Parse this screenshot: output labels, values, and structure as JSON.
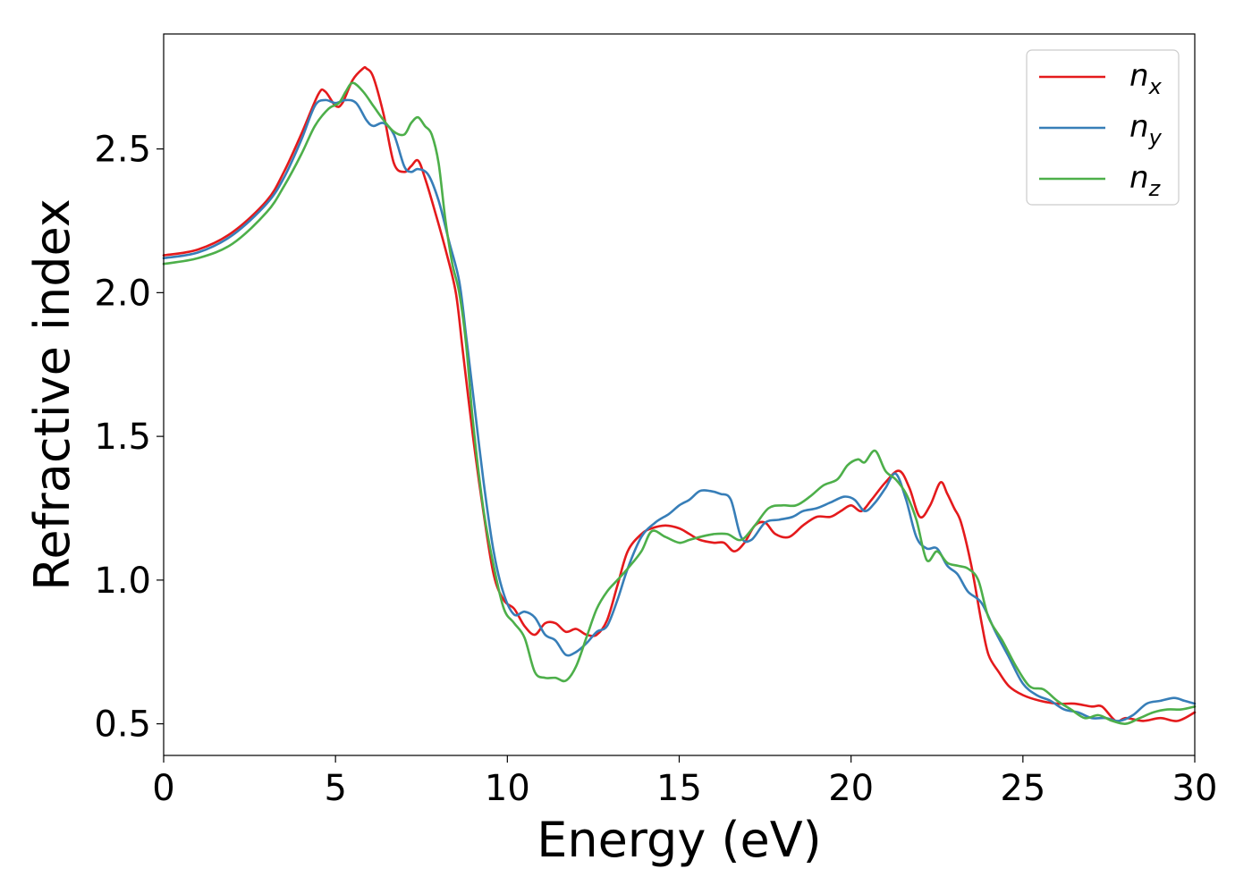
{
  "chart_data": {
    "type": "line",
    "xlabel": "Energy (eV)",
    "ylabel": "Refractive index",
    "xlim": [
      0,
      30
    ],
    "ylim": [
      0.39,
      2.9
    ],
    "x_ticks": [
      "0",
      "5",
      "10",
      "15",
      "20",
      "25",
      "30"
    ],
    "y_ticks": [
      "0.5",
      "1.0",
      "1.5",
      "2.0",
      "2.5"
    ],
    "grid": false,
    "legend_position": "top-right",
    "series": [
      {
        "name": "n",
        "subscript": "x",
        "color": "#e41a1c",
        "x": [
          0,
          1,
          2,
          3,
          3.5,
          4,
          4.5,
          4.7,
          5.0,
          5.2,
          5.5,
          5.8,
          5.9,
          6.1,
          6.4,
          6.7,
          7.0,
          7.2,
          7.4,
          7.6,
          7.9,
          8.2,
          8.5,
          8.7,
          9.0,
          9.3,
          9.6,
          9.9,
          10.2,
          10.5,
          10.8,
          11.1,
          11.4,
          11.7,
          12.0,
          12.3,
          12.6,
          12.9,
          13.2,
          13.5,
          13.9,
          14.2,
          14.6,
          15.0,
          15.3,
          15.6,
          16.0,
          16.3,
          16.6,
          16.9,
          17.2,
          17.5,
          17.8,
          18.2,
          18.6,
          19.0,
          19.4,
          19.7,
          20.0,
          20.3,
          20.6,
          21.0,
          21.4,
          21.7,
          22.0,
          22.3,
          22.6,
          22.8,
          23.0,
          23.2,
          23.5,
          23.8,
          24.0,
          24.3,
          24.6,
          25.0,
          25.5,
          26.0,
          26.5,
          27.0,
          27.3,
          27.7,
          28.0,
          28.5,
          29.0,
          29.5,
          30.0
        ],
        "values": [
          2.13,
          2.15,
          2.21,
          2.32,
          2.42,
          2.55,
          2.69,
          2.7,
          2.65,
          2.66,
          2.74,
          2.78,
          2.78,
          2.75,
          2.62,
          2.45,
          2.42,
          2.44,
          2.46,
          2.4,
          2.28,
          2.15,
          2.0,
          1.8,
          1.5,
          1.24,
          1.02,
          0.93,
          0.9,
          0.84,
          0.81,
          0.85,
          0.85,
          0.82,
          0.83,
          0.81,
          0.81,
          0.86,
          0.98,
          1.1,
          1.16,
          1.18,
          1.19,
          1.18,
          1.16,
          1.14,
          1.13,
          1.13,
          1.1,
          1.13,
          1.19,
          1.2,
          1.16,
          1.15,
          1.19,
          1.22,
          1.22,
          1.24,
          1.26,
          1.24,
          1.28,
          1.34,
          1.38,
          1.32,
          1.22,
          1.26,
          1.34,
          1.3,
          1.25,
          1.2,
          1.05,
          0.85,
          0.74,
          0.68,
          0.63,
          0.6,
          0.58,
          0.57,
          0.57,
          0.56,
          0.56,
          0.51,
          0.52,
          0.51,
          0.52,
          0.51,
          0.54
        ]
      },
      {
        "name": "n",
        "subscript": "y",
        "color": "#377eb8",
        "x": [
          0,
          1,
          2,
          3,
          3.5,
          4,
          4.4,
          4.7,
          5.0,
          5.3,
          5.6,
          5.9,
          6.1,
          6.4,
          6.7,
          7.0,
          7.2,
          7.4,
          7.7,
          8.0,
          8.3,
          8.6,
          8.8,
          9.0,
          9.3,
          9.6,
          9.9,
          10.2,
          10.5,
          10.8,
          11.1,
          11.4,
          11.7,
          12.0,
          12.3,
          12.6,
          12.9,
          13.2,
          13.5,
          13.9,
          14.3,
          14.7,
          15.0,
          15.3,
          15.6,
          15.9,
          16.2,
          16.5,
          16.8,
          17.1,
          17.5,
          17.9,
          18.3,
          18.6,
          19.0,
          19.4,
          19.8,
          20.1,
          20.4,
          20.7,
          21.0,
          21.3,
          21.6,
          21.9,
          22.2,
          22.5,
          22.8,
          23.1,
          23.4,
          23.8,
          24.2,
          24.6,
          25.0,
          25.4,
          25.8,
          26.2,
          26.6,
          27.0,
          27.4,
          27.8,
          28.2,
          28.6,
          29.0,
          29.4,
          29.7,
          30.0
        ],
        "values": [
          2.12,
          2.14,
          2.2,
          2.31,
          2.4,
          2.53,
          2.65,
          2.67,
          2.66,
          2.67,
          2.66,
          2.6,
          2.58,
          2.59,
          2.55,
          2.44,
          2.42,
          2.43,
          2.41,
          2.32,
          2.18,
          2.04,
          1.85,
          1.65,
          1.35,
          1.1,
          0.95,
          0.88,
          0.89,
          0.87,
          0.81,
          0.79,
          0.74,
          0.75,
          0.78,
          0.82,
          0.84,
          0.93,
          1.04,
          1.15,
          1.2,
          1.23,
          1.26,
          1.28,
          1.31,
          1.31,
          1.3,
          1.28,
          1.15,
          1.14,
          1.2,
          1.21,
          1.22,
          1.24,
          1.25,
          1.27,
          1.29,
          1.28,
          1.24,
          1.27,
          1.32,
          1.37,
          1.28,
          1.15,
          1.11,
          1.11,
          1.05,
          1.02,
          0.96,
          0.92,
          0.82,
          0.73,
          0.64,
          0.6,
          0.58,
          0.55,
          0.54,
          0.52,
          0.52,
          0.51,
          0.53,
          0.57,
          0.58,
          0.59,
          0.58,
          0.57
        ]
      },
      {
        "name": "n",
        "subscript": "z",
        "color": "#4daf4a",
        "x": [
          0,
          1,
          2,
          3,
          3.5,
          4,
          4.4,
          4.8,
          5.1,
          5.3,
          5.5,
          5.8,
          6.1,
          6.4,
          6.7,
          7.0,
          7.2,
          7.4,
          7.6,
          7.8,
          8.0,
          8.2,
          8.4,
          8.6,
          8.8,
          9.0,
          9.3,
          9.6,
          9.9,
          10.2,
          10.5,
          10.8,
          11.1,
          11.4,
          11.7,
          12.0,
          12.3,
          12.6,
          12.9,
          13.2,
          13.5,
          13.9,
          14.2,
          14.6,
          15.0,
          15.3,
          15.6,
          16.0,
          16.4,
          16.8,
          17.2,
          17.6,
          18.0,
          18.4,
          18.8,
          19.2,
          19.6,
          19.9,
          20.2,
          20.4,
          20.7,
          21.0,
          21.3,
          21.6,
          21.9,
          22.2,
          22.5,
          22.8,
          23.1,
          23.4,
          23.7,
          24.0,
          24.4,
          24.8,
          25.2,
          25.6,
          26.0,
          26.4,
          26.8,
          27.2,
          27.6,
          28.0,
          28.4,
          28.8,
          29.2,
          29.6,
          30.0
        ],
        "values": [
          2.1,
          2.12,
          2.17,
          2.28,
          2.37,
          2.48,
          2.58,
          2.64,
          2.66,
          2.7,
          2.73,
          2.7,
          2.65,
          2.6,
          2.56,
          2.55,
          2.59,
          2.61,
          2.58,
          2.55,
          2.45,
          2.25,
          2.1,
          2.0,
          1.82,
          1.55,
          1.25,
          1.05,
          0.9,
          0.85,
          0.8,
          0.68,
          0.66,
          0.66,
          0.65,
          0.7,
          0.8,
          0.9,
          0.96,
          1.0,
          1.04,
          1.1,
          1.17,
          1.15,
          1.13,
          1.14,
          1.15,
          1.16,
          1.16,
          1.14,
          1.19,
          1.25,
          1.26,
          1.26,
          1.29,
          1.33,
          1.35,
          1.4,
          1.42,
          1.41,
          1.45,
          1.38,
          1.35,
          1.3,
          1.21,
          1.07,
          1.1,
          1.06,
          1.05,
          1.04,
          1.0,
          0.87,
          0.79,
          0.7,
          0.63,
          0.62,
          0.58,
          0.55,
          0.52,
          0.53,
          0.51,
          0.5,
          0.52,
          0.54,
          0.55,
          0.55,
          0.56
        ]
      }
    ]
  }
}
